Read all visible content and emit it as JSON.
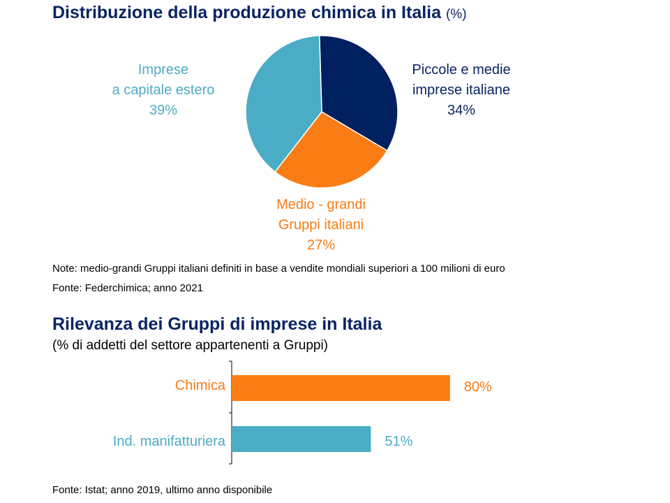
{
  "pie_title": "Distribuzione della produzione chimica in Italia",
  "pie_unit": "(%)",
  "note": "Note: medio-grandi Gruppi italiani  definiti in base a vendite mondiali superiori a 100 milioni di euro",
  "source1": "Fonte: Federchimica; anno 2021",
  "bar_title": "Rilevanza dei Gruppi di imprese in Italia",
  "bar_subtitle": "(% di addetti del settore appartenenti a Gruppi)",
  "source2": "Fonte: Istat; anno 2019, ultimo anno disponibile",
  "chart_data": [
    {
      "type": "pie",
      "title": "Distribuzione della produzione chimica in Italia (%)",
      "slices": [
        {
          "line1": "Piccole e medie",
          "line2": "imprese italiane",
          "value": 34,
          "value_label": "34%",
          "color": "#002060"
        },
        {
          "line1": "Medio - grandi",
          "line2": "Gruppi italiani",
          "value": 27,
          "value_label": "27%",
          "color": "#fa7c14"
        },
        {
          "line1": "Imprese",
          "line2": "a capitale estero",
          "value": 39,
          "value_label": "39%",
          "color": "#4bacc6"
        }
      ]
    },
    {
      "type": "bar",
      "orientation": "horizontal",
      "title": "Rilevanza dei Gruppi di imprese in Italia",
      "subtitle": "(% di addetti del settore appartenenti a Gruppi)",
      "categories": [
        "Chimica",
        "Ind. manifatturiera"
      ],
      "values": [
        80,
        51
      ],
      "value_labels": [
        "80%",
        "51%"
      ],
      "colors": [
        "#fa7c14",
        "#4bacc6"
      ],
      "xlim": [
        0,
        100
      ]
    }
  ]
}
